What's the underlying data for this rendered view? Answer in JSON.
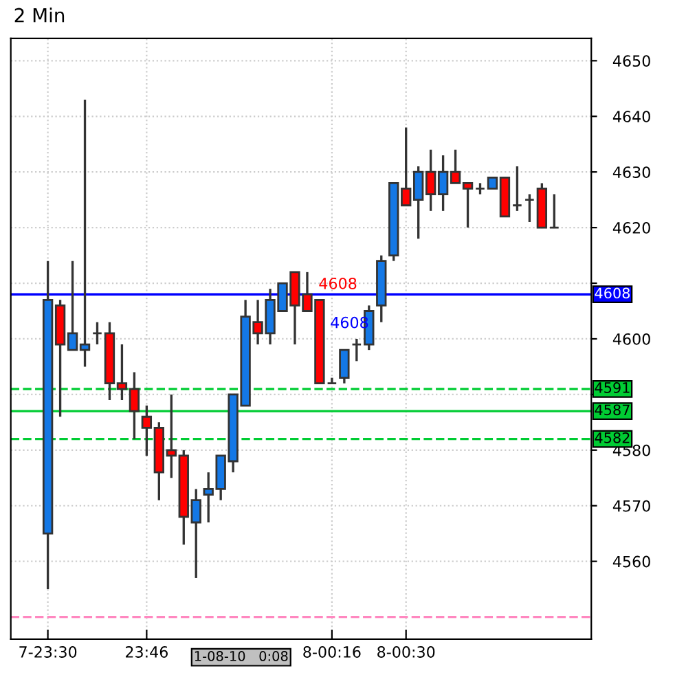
{
  "chart_data": {
    "type": "candlestick",
    "title": "2 Min",
    "categories": [
      "7-23:30",
      null,
      null,
      null,
      null,
      null,
      null,
      null,
      "23:46",
      null,
      null,
      null,
      null,
      null,
      null,
      null,
      null,
      null,
      null,
      null,
      null,
      null,
      null,
      "8-00:16",
      null,
      null,
      null,
      null,
      null,
      "8-00:30",
      null,
      null,
      null,
      null,
      null,
      null,
      null,
      null,
      null,
      null,
      null,
      null
    ],
    "ohlc": [
      [
        4565,
        4614,
        4555,
        4607
      ],
      [
        4606,
        4607,
        4586,
        4599
      ],
      [
        4598,
        4614,
        4598,
        4601
      ],
      [
        4598,
        4643,
        4595,
        4599
      ],
      [
        4601,
        4603,
        4599,
        4601
      ],
      [
        4601,
        4603,
        4589,
        4592
      ],
      [
        4592,
        4599,
        4589,
        4591
      ],
      [
        4591,
        4594,
        4582,
        4587
      ],
      [
        4586,
        4588,
        4579,
        4584
      ],
      [
        4584,
        4585,
        4571,
        4576
      ],
      [
        4580,
        4590,
        4575,
        4579
      ],
      [
        4579,
        4580,
        4563,
        4568
      ],
      [
        4567,
        4573,
        4557,
        4571
      ],
      [
        4572,
        4576,
        4567,
        4573
      ],
      [
        4573,
        4579,
        4571,
        4579
      ],
      [
        4578,
        4590,
        4576,
        4590
      ],
      [
        4588,
        4607,
        4588,
        4604
      ],
      [
        4603,
        4607,
        4599,
        4601
      ],
      [
        4601,
        4609,
        4599,
        4607
      ],
      [
        4605,
        4610,
        4605,
        4610
      ],
      [
        4612,
        4612,
        4599,
        4606
      ],
      [
        4608,
        4612,
        4605,
        4605
      ],
      [
        4607,
        4607,
        4592,
        4592
      ],
      [
        4592,
        4593,
        4592,
        4592
      ],
      [
        4593,
        4598,
        4592,
        4598
      ],
      [
        4599,
        4600,
        4596,
        4599
      ],
      [
        4599,
        4606,
        4598,
        4605
      ],
      [
        4606,
        4615,
        4603,
        4614
      ],
      [
        4615,
        4628,
        4614,
        4628
      ],
      [
        4627,
        4638,
        4624,
        4624
      ],
      [
        4625,
        4631,
        4618,
        4630
      ],
      [
        4630,
        4634,
        4623,
        4626
      ],
      [
        4626,
        4633,
        4623,
        4630
      ],
      [
        4630,
        4634,
        4628,
        4628
      ],
      [
        4628,
        4628,
        4620,
        4627
      ],
      [
        4627,
        4628,
        4626,
        4627
      ],
      [
        4627,
        4629,
        4627,
        4629
      ],
      [
        4629,
        4629,
        4622,
        4622
      ],
      [
        4624,
        4631,
        4623,
        4624
      ],
      [
        4625,
        4626,
        4621,
        4625
      ],
      [
        4627,
        4628,
        4620,
        4620
      ],
      [
        4620,
        4626,
        4620,
        4620
      ]
    ],
    "colors": [
      "#1478e6",
      "#ff0000",
      "#1478e6",
      "#1478e6",
      "#333333",
      "#ff0000",
      "#ff0000",
      "#ff0000",
      "#ff0000",
      "#ff0000",
      "#ff0000",
      "#ff0000",
      "#1478e6",
      "#1478e6",
      "#1478e6",
      "#1478e6",
      "#1478e6",
      "#ff0000",
      "#1478e6",
      "#1478e6",
      "#ff0000",
      "#ff0000",
      "#ff0000",
      "#333333",
      "#1478e6",
      "#333333",
      "#1478e6",
      "#1478e6",
      "#1478e6",
      "#ff0000",
      "#1478e6",
      "#ff0000",
      "#1478e6",
      "#ff0000",
      "#ff0000",
      "#333333",
      "#1478e6",
      "#ff0000",
      "#333333",
      "#333333",
      "#ff0000",
      "#333333"
    ],
    "ylim": [
      4546,
      4654
    ],
    "yticks": [
      4560,
      4570,
      4580,
      {
        "value": 4590,
        "label": null
      },
      4600,
      {
        "value": 4610,
        "label": null
      },
      4620,
      4630,
      4640,
      4650
    ],
    "ref_lines": [
      {
        "axis": "y",
        "value": 4608,
        "label": "4608",
        "color": "#0000ff",
        "line_style": "solid"
      },
      {
        "axis": "y",
        "value": 4591,
        "label": "4591",
        "color": "#00cc33",
        "line_style": "dashed"
      },
      {
        "axis": "y",
        "value": 4587,
        "label": "4587",
        "color": "#00cc33",
        "line_style": "solid"
      },
      {
        "axis": "y",
        "value": 4582,
        "label": "4582",
        "color": "#00cc33",
        "line_style": "dashed"
      },
      {
        "axis": "y",
        "value": 4550,
        "color": "#ff88c0",
        "line_style": "dashed"
      }
    ],
    "annotations": [
      "4608",
      "4608",
      "1-08-10   0:08"
    ],
    "grid": true
  }
}
